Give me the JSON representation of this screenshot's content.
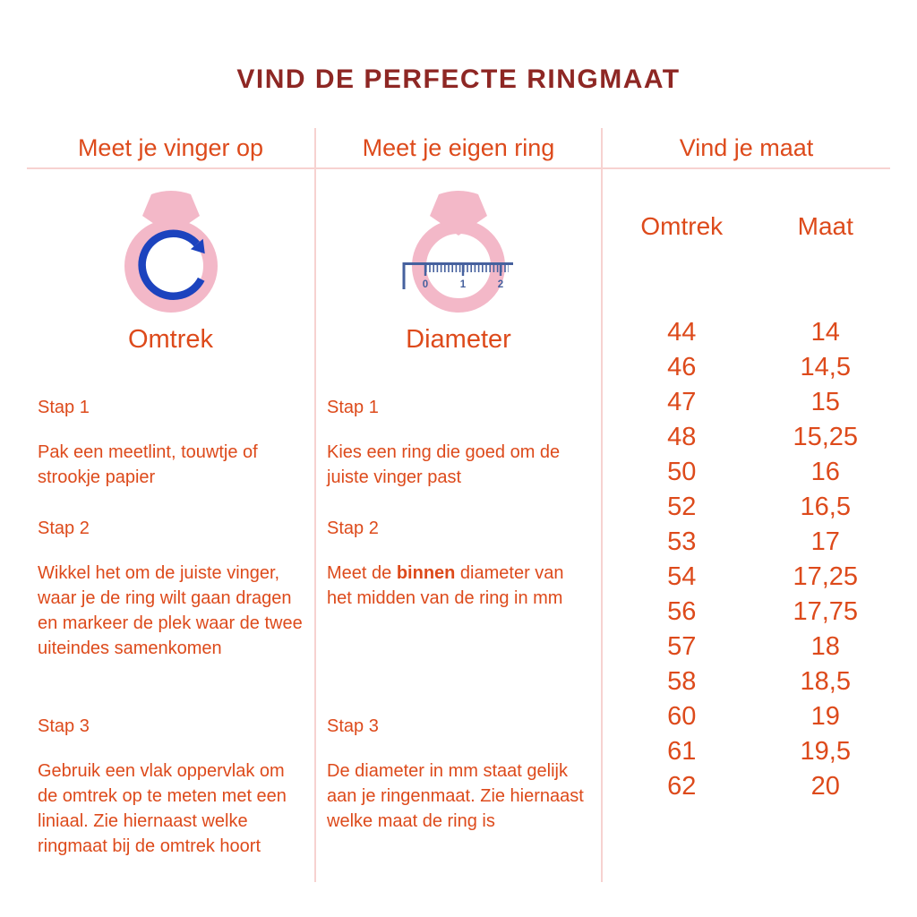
{
  "title": "VIND DE PERFECTE RINGMAAT",
  "columns": {
    "finger": {
      "header": "Meet je vinger op",
      "method_label": "Omtrek",
      "steps": [
        {
          "label": "Stap 1",
          "text": "Pak een meetlint, touwtje of strookje papier"
        },
        {
          "label": "Stap 2",
          "text": "Wikkel het om de juiste vinger, waar je de ring wilt gaan dragen en markeer de plek waar de twee uiteindes samenkomen"
        },
        {
          "label": "Stap 3",
          "text": "Gebruik een vlak oppervlak om de omtrek op te meten met een liniaal. Zie hiernaast welke ringmaat bij de omtrek hoort"
        }
      ]
    },
    "ring": {
      "header": "Meet je eigen ring",
      "method_label": "Diameter",
      "steps": [
        {
          "label": "Stap 1",
          "text": "Kies een ring die goed om de juiste vinger past"
        },
        {
          "label": "Stap 2",
          "text_before": "Meet de ",
          "text_bold": "binnen",
          "text_after": " diameter van het midden van de ring in mm"
        },
        {
          "label": "Stap 3",
          "text": "De diameter in mm staat gelijk aan je ringenmaat. Zie hiernaast welke maat de ring is"
        }
      ]
    },
    "sizes": {
      "header": "Vind je maat",
      "col_headers": [
        "Omtrek",
        "Maat"
      ],
      "rows": [
        [
          "44",
          "14"
        ],
        [
          "46",
          "14,5"
        ],
        [
          "47",
          "15"
        ],
        [
          "48",
          "15,25"
        ],
        [
          "50",
          "16"
        ],
        [
          "52",
          "16,5"
        ],
        [
          "53",
          "17"
        ],
        [
          "54",
          "17,25"
        ],
        [
          "56",
          "17,75"
        ],
        [
          "57",
          "18"
        ],
        [
          "58",
          "18,5"
        ],
        [
          "60",
          "19"
        ],
        [
          "61",
          "19,5"
        ],
        [
          "62",
          "20"
        ]
      ]
    }
  },
  "icons": {
    "ring_rotation": {
      "meaning": "ring with circular rotation arrow (measure circumference)"
    },
    "ring_ruler": {
      "meaning": "ring with ruler across (measure diameter)",
      "ruler_marks": [
        "0",
        "1",
        "2"
      ]
    }
  },
  "colors": {
    "title_maroon": "#8E2724",
    "accent_orange": "#DD4A1B",
    "divider_pink": "#F7D2D0",
    "ring_pink": "#F3B8C8",
    "arrow_blue": "#1C43BE",
    "ruler_navy": "#46619E",
    "background": "#FFFFFF"
  }
}
